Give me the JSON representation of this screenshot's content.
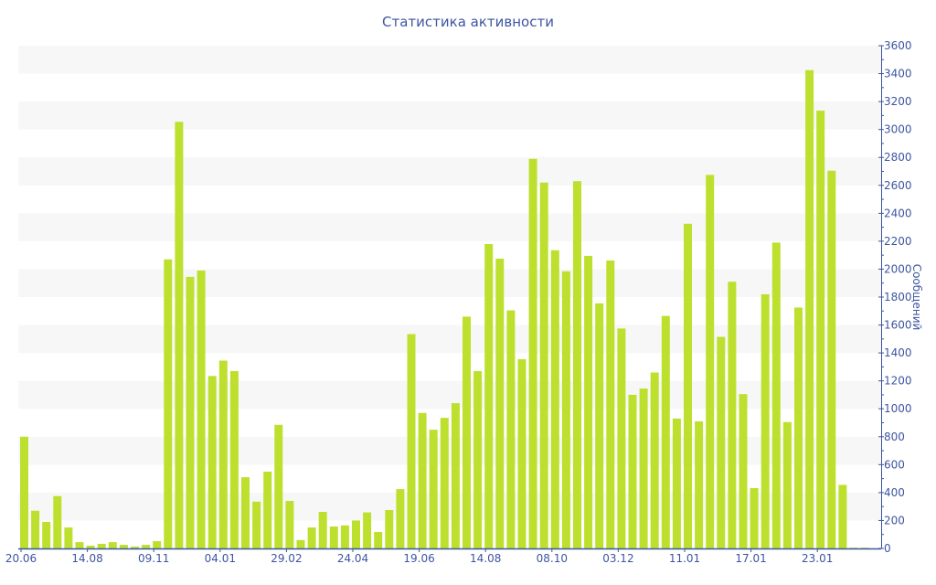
{
  "chart_data": {
    "type": "bar",
    "title": "Статистика активности",
    "xlabel": "",
    "ylabel": "Сообщений",
    "ylim": [
      0,
      3600
    ],
    "y_ticks": [
      0,
      200,
      400,
      600,
      800,
      1000,
      1200,
      1400,
      1600,
      1800,
      2000,
      2200,
      2400,
      2600,
      2800,
      3000,
      3200,
      3400,
      3600
    ],
    "x_tick_labels": [
      "20.06",
      "14.08",
      "09.11",
      "04.01",
      "29.02",
      "24.04",
      "19.06",
      "14.08",
      "08.10",
      "03.12",
      "11.01",
      "17.01",
      "23.01"
    ],
    "x_tick_every": 6,
    "bar_color": "#bde02e",
    "axis_color": "#3d55a0",
    "band_color": "#f7f7f7",
    "y_axis_position": "right",
    "values": [
      800,
      270,
      190,
      375,
      150,
      45,
      20,
      33,
      45,
      26,
      13,
      26,
      52,
      2070,
      3055,
      1945,
      1990,
      1235,
      1345,
      1270,
      510,
      335,
      550,
      885,
      340,
      60,
      150,
      262,
      157,
      165,
      200,
      258,
      118,
      275,
      425,
      1535,
      970,
      850,
      935,
      1040,
      1660,
      1270,
      2180,
      2075,
      1705,
      1355,
      2790,
      2620,
      2135,
      1985,
      2630,
      2095,
      1755,
      2062,
      1575,
      1100,
      1145,
      1260,
      1665,
      930,
      2325,
      910,
      2675,
      1515,
      1910,
      1105,
      432,
      1820,
      2190,
      905,
      1725,
      3425,
      3135,
      2705,
      455,
      5,
      5
    ]
  }
}
